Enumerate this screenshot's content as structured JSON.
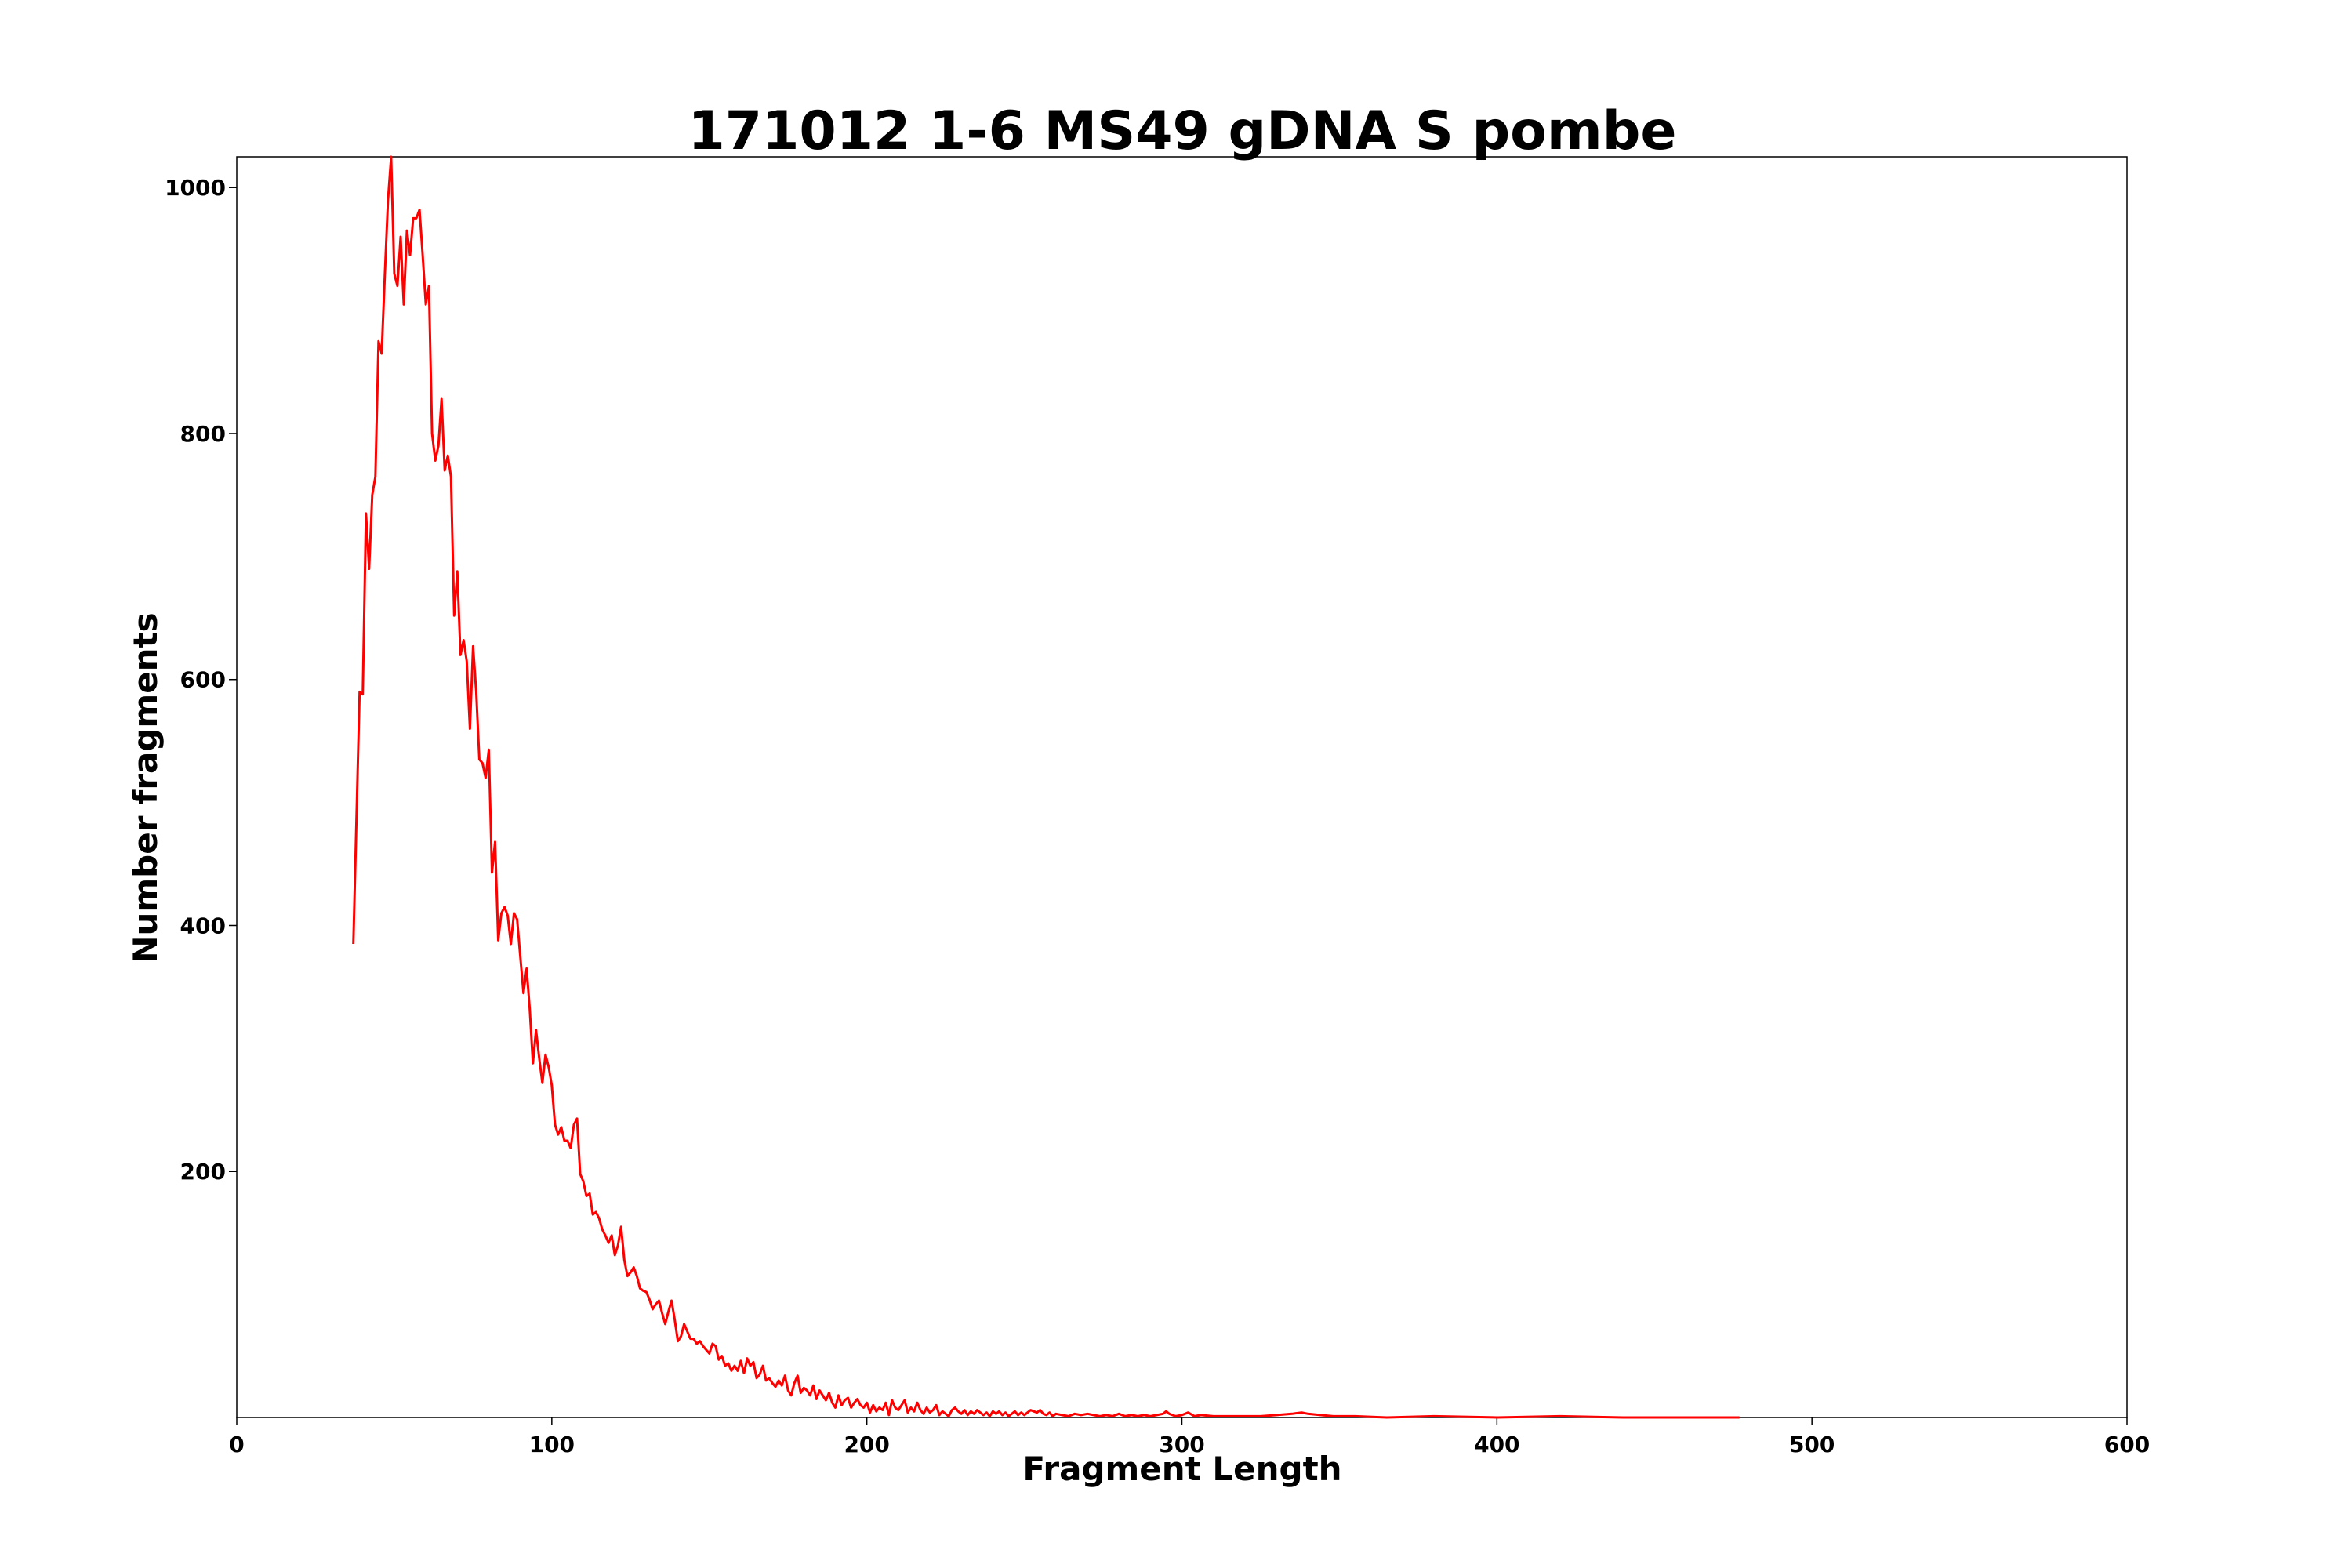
{
  "chart_data": {
    "type": "line",
    "title": "171012 1-6 MS49 gDNA S pombe",
    "xlabel": "Fragment Length",
    "ylabel": "Number fragments",
    "xlim": [
      0,
      600
    ],
    "ylim": [
      0,
      1025
    ],
    "xticks": [
      0,
      100,
      200,
      300,
      400,
      500,
      600
    ],
    "yticks": [
      200,
      400,
      600,
      800,
      1000
    ],
    "grid": false,
    "series": [
      {
        "color": "#ff0000",
        "points": [
          [
            37,
            385
          ],
          [
            39,
            590
          ],
          [
            40,
            588
          ],
          [
            41,
            735
          ],
          [
            42,
            690
          ],
          [
            43,
            750
          ],
          [
            44,
            765
          ],
          [
            45,
            875
          ],
          [
            46,
            865
          ],
          [
            47,
            930
          ],
          [
            48,
            990
          ],
          [
            49,
            1025
          ],
          [
            50,
            930
          ],
          [
            51,
            920
          ],
          [
            52,
            960
          ],
          [
            53,
            905
          ],
          [
            54,
            965
          ],
          [
            55,
            945
          ],
          [
            56,
            975
          ],
          [
            57,
            975
          ],
          [
            58,
            982
          ],
          [
            59,
            945
          ],
          [
            60,
            905
          ],
          [
            61,
            920
          ],
          [
            62,
            800
          ],
          [
            63,
            778
          ],
          [
            64,
            790
          ],
          [
            65,
            828
          ],
          [
            66,
            770
          ],
          [
            67,
            782
          ],
          [
            68,
            765
          ],
          [
            69,
            652
          ],
          [
            70,
            688
          ],
          [
            71,
            620
          ],
          [
            72,
            632
          ],
          [
            73,
            615
          ],
          [
            74,
            560
          ],
          [
            75,
            627
          ],
          [
            76,
            590
          ],
          [
            77,
            535
          ],
          [
            78,
            532
          ],
          [
            79,
            520
          ],
          [
            80,
            543
          ],
          [
            81,
            443
          ],
          [
            82,
            468
          ],
          [
            83,
            388
          ],
          [
            84,
            410
          ],
          [
            85,
            415
          ],
          [
            86,
            408
          ],
          [
            87,
            385
          ],
          [
            88,
            410
          ],
          [
            89,
            405
          ],
          [
            90,
            375
          ],
          [
            91,
            345
          ],
          [
            92,
            365
          ],
          [
            93,
            332
          ],
          [
            94,
            288
          ],
          [
            95,
            315
          ],
          [
            96,
            292
          ],
          [
            97,
            272
          ],
          [
            98,
            295
          ],
          [
            99,
            285
          ],
          [
            100,
            270
          ],
          [
            101,
            238
          ],
          [
            102,
            230
          ],
          [
            103,
            236
          ],
          [
            104,
            225
          ],
          [
            105,
            225
          ],
          [
            106,
            219
          ],
          [
            107,
            238
          ],
          [
            108,
            243
          ],
          [
            109,
            198
          ],
          [
            110,
            192
          ],
          [
            111,
            180
          ],
          [
            112,
            182
          ],
          [
            113,
            165
          ],
          [
            114,
            167
          ],
          [
            115,
            162
          ],
          [
            116,
            153
          ],
          [
            117,
            148
          ],
          [
            118,
            142
          ],
          [
            119,
            148
          ],
          [
            120,
            132
          ],
          [
            121,
            140
          ],
          [
            122,
            155
          ],
          [
            123,
            128
          ],
          [
            124,
            115
          ],
          [
            125,
            118
          ],
          [
            126,
            122
          ],
          [
            127,
            115
          ],
          [
            128,
            105
          ],
          [
            129,
            103
          ],
          [
            130,
            102
          ],
          [
            131,
            96
          ],
          [
            132,
            88
          ],
          [
            133,
            92
          ],
          [
            134,
            95
          ],
          [
            135,
            85
          ],
          [
            136,
            76
          ],
          [
            137,
            86
          ],
          [
            138,
            95
          ],
          [
            139,
            80
          ],
          [
            140,
            62
          ],
          [
            141,
            66
          ],
          [
            142,
            76
          ],
          [
            143,
            70
          ],
          [
            144,
            64
          ],
          [
            145,
            64
          ],
          [
            146,
            60
          ],
          [
            147,
            62
          ],
          [
            148,
            58
          ],
          [
            149,
            55
          ],
          [
            150,
            52
          ],
          [
            151,
            60
          ],
          [
            152,
            58
          ],
          [
            153,
            47
          ],
          [
            154,
            50
          ],
          [
            155,
            42
          ],
          [
            156,
            44
          ],
          [
            157,
            38
          ],
          [
            158,
            42
          ],
          [
            159,
            38
          ],
          [
            160,
            46
          ],
          [
            161,
            36
          ],
          [
            162,
            48
          ],
          [
            163,
            42
          ],
          [
            164,
            45
          ],
          [
            165,
            32
          ],
          [
            166,
            35
          ],
          [
            167,
            42
          ],
          [
            168,
            30
          ],
          [
            169,
            32
          ],
          [
            170,
            28
          ],
          [
            171,
            25
          ],
          [
            172,
            30
          ],
          [
            173,
            26
          ],
          [
            174,
            34
          ],
          [
            175,
            22
          ],
          [
            176,
            18
          ],
          [
            177,
            28
          ],
          [
            178,
            34
          ],
          [
            179,
            20
          ],
          [
            180,
            24
          ],
          [
            181,
            22
          ],
          [
            182,
            18
          ],
          [
            183,
            26
          ],
          [
            184,
            15
          ],
          [
            185,
            22
          ],
          [
            186,
            18
          ],
          [
            187,
            14
          ],
          [
            188,
            20
          ],
          [
            189,
            12
          ],
          [
            190,
            8
          ],
          [
            191,
            18
          ],
          [
            192,
            10
          ],
          [
            193,
            14
          ],
          [
            194,
            16
          ],
          [
            195,
            8
          ],
          [
            196,
            12
          ],
          [
            197,
            15
          ],
          [
            198,
            10
          ],
          [
            199,
            8
          ],
          [
            200,
            12
          ],
          [
            201,
            4
          ],
          [
            202,
            10
          ],
          [
            203,
            5
          ],
          [
            204,
            8
          ],
          [
            205,
            6
          ],
          [
            206,
            12
          ],
          [
            207,
            2
          ],
          [
            208,
            14
          ],
          [
            209,
            8
          ],
          [
            210,
            6
          ],
          [
            211,
            10
          ],
          [
            212,
            14
          ],
          [
            213,
            4
          ],
          [
            214,
            8
          ],
          [
            215,
            5
          ],
          [
            216,
            12
          ],
          [
            217,
            6
          ],
          [
            218,
            3
          ],
          [
            219,
            8
          ],
          [
            220,
            4
          ],
          [
            221,
            6
          ],
          [
            222,
            10
          ],
          [
            223,
            2
          ],
          [
            224,
            5
          ],
          [
            225,
            3
          ],
          [
            226,
            1
          ],
          [
            227,
            6
          ],
          [
            228,
            8
          ],
          [
            229,
            5
          ],
          [
            230,
            3
          ],
          [
            231,
            6
          ],
          [
            232,
            2
          ],
          [
            233,
            5
          ],
          [
            234,
            3
          ],
          [
            235,
            6
          ],
          [
            236,
            4
          ],
          [
            237,
            2
          ],
          [
            238,
            4
          ],
          [
            239,
            1
          ],
          [
            240,
            5
          ],
          [
            241,
            3
          ],
          [
            242,
            5
          ],
          [
            243,
            2
          ],
          [
            244,
            4
          ],
          [
            245,
            1
          ],
          [
            246,
            3
          ],
          [
            247,
            5
          ],
          [
            248,
            2
          ],
          [
            249,
            4
          ],
          [
            250,
            2
          ],
          [
            251,
            4
          ],
          [
            252,
            6
          ],
          [
            253,
            5
          ],
          [
            254,
            4
          ],
          [
            255,
            6
          ],
          [
            256,
            3
          ],
          [
            257,
            2
          ],
          [
            258,
            4
          ],
          [
            259,
            1
          ],
          [
            260,
            3
          ],
          [
            262,
            2
          ],
          [
            264,
            1
          ],
          [
            266,
            3
          ],
          [
            268,
            2
          ],
          [
            270,
            3
          ],
          [
            272,
            2
          ],
          [
            274,
            1
          ],
          [
            276,
            2
          ],
          [
            278,
            1
          ],
          [
            280,
            3
          ],
          [
            282,
            1
          ],
          [
            284,
            2
          ],
          [
            286,
            1
          ],
          [
            288,
            2
          ],
          [
            290,
            1
          ],
          [
            292,
            2
          ],
          [
            294,
            3
          ],
          [
            295,
            5
          ],
          [
            296,
            3
          ],
          [
            298,
            1
          ],
          [
            300,
            2
          ],
          [
            302,
            4
          ],
          [
            304,
            1
          ],
          [
            306,
            2
          ],
          [
            310,
            1
          ],
          [
            315,
            1
          ],
          [
            320,
            1
          ],
          [
            325,
            1
          ],
          [
            330,
            2
          ],
          [
            335,
            3
          ],
          [
            338,
            4
          ],
          [
            340,
            3
          ],
          [
            344,
            2
          ],
          [
            348,
            1
          ],
          [
            355,
            1
          ],
          [
            365,
            0
          ],
          [
            380,
            1
          ],
          [
            400,
            0
          ],
          [
            420,
            1
          ],
          [
            440,
            0
          ],
          [
            460,
            0
          ],
          [
            477,
            0
          ]
        ]
      }
    ]
  }
}
